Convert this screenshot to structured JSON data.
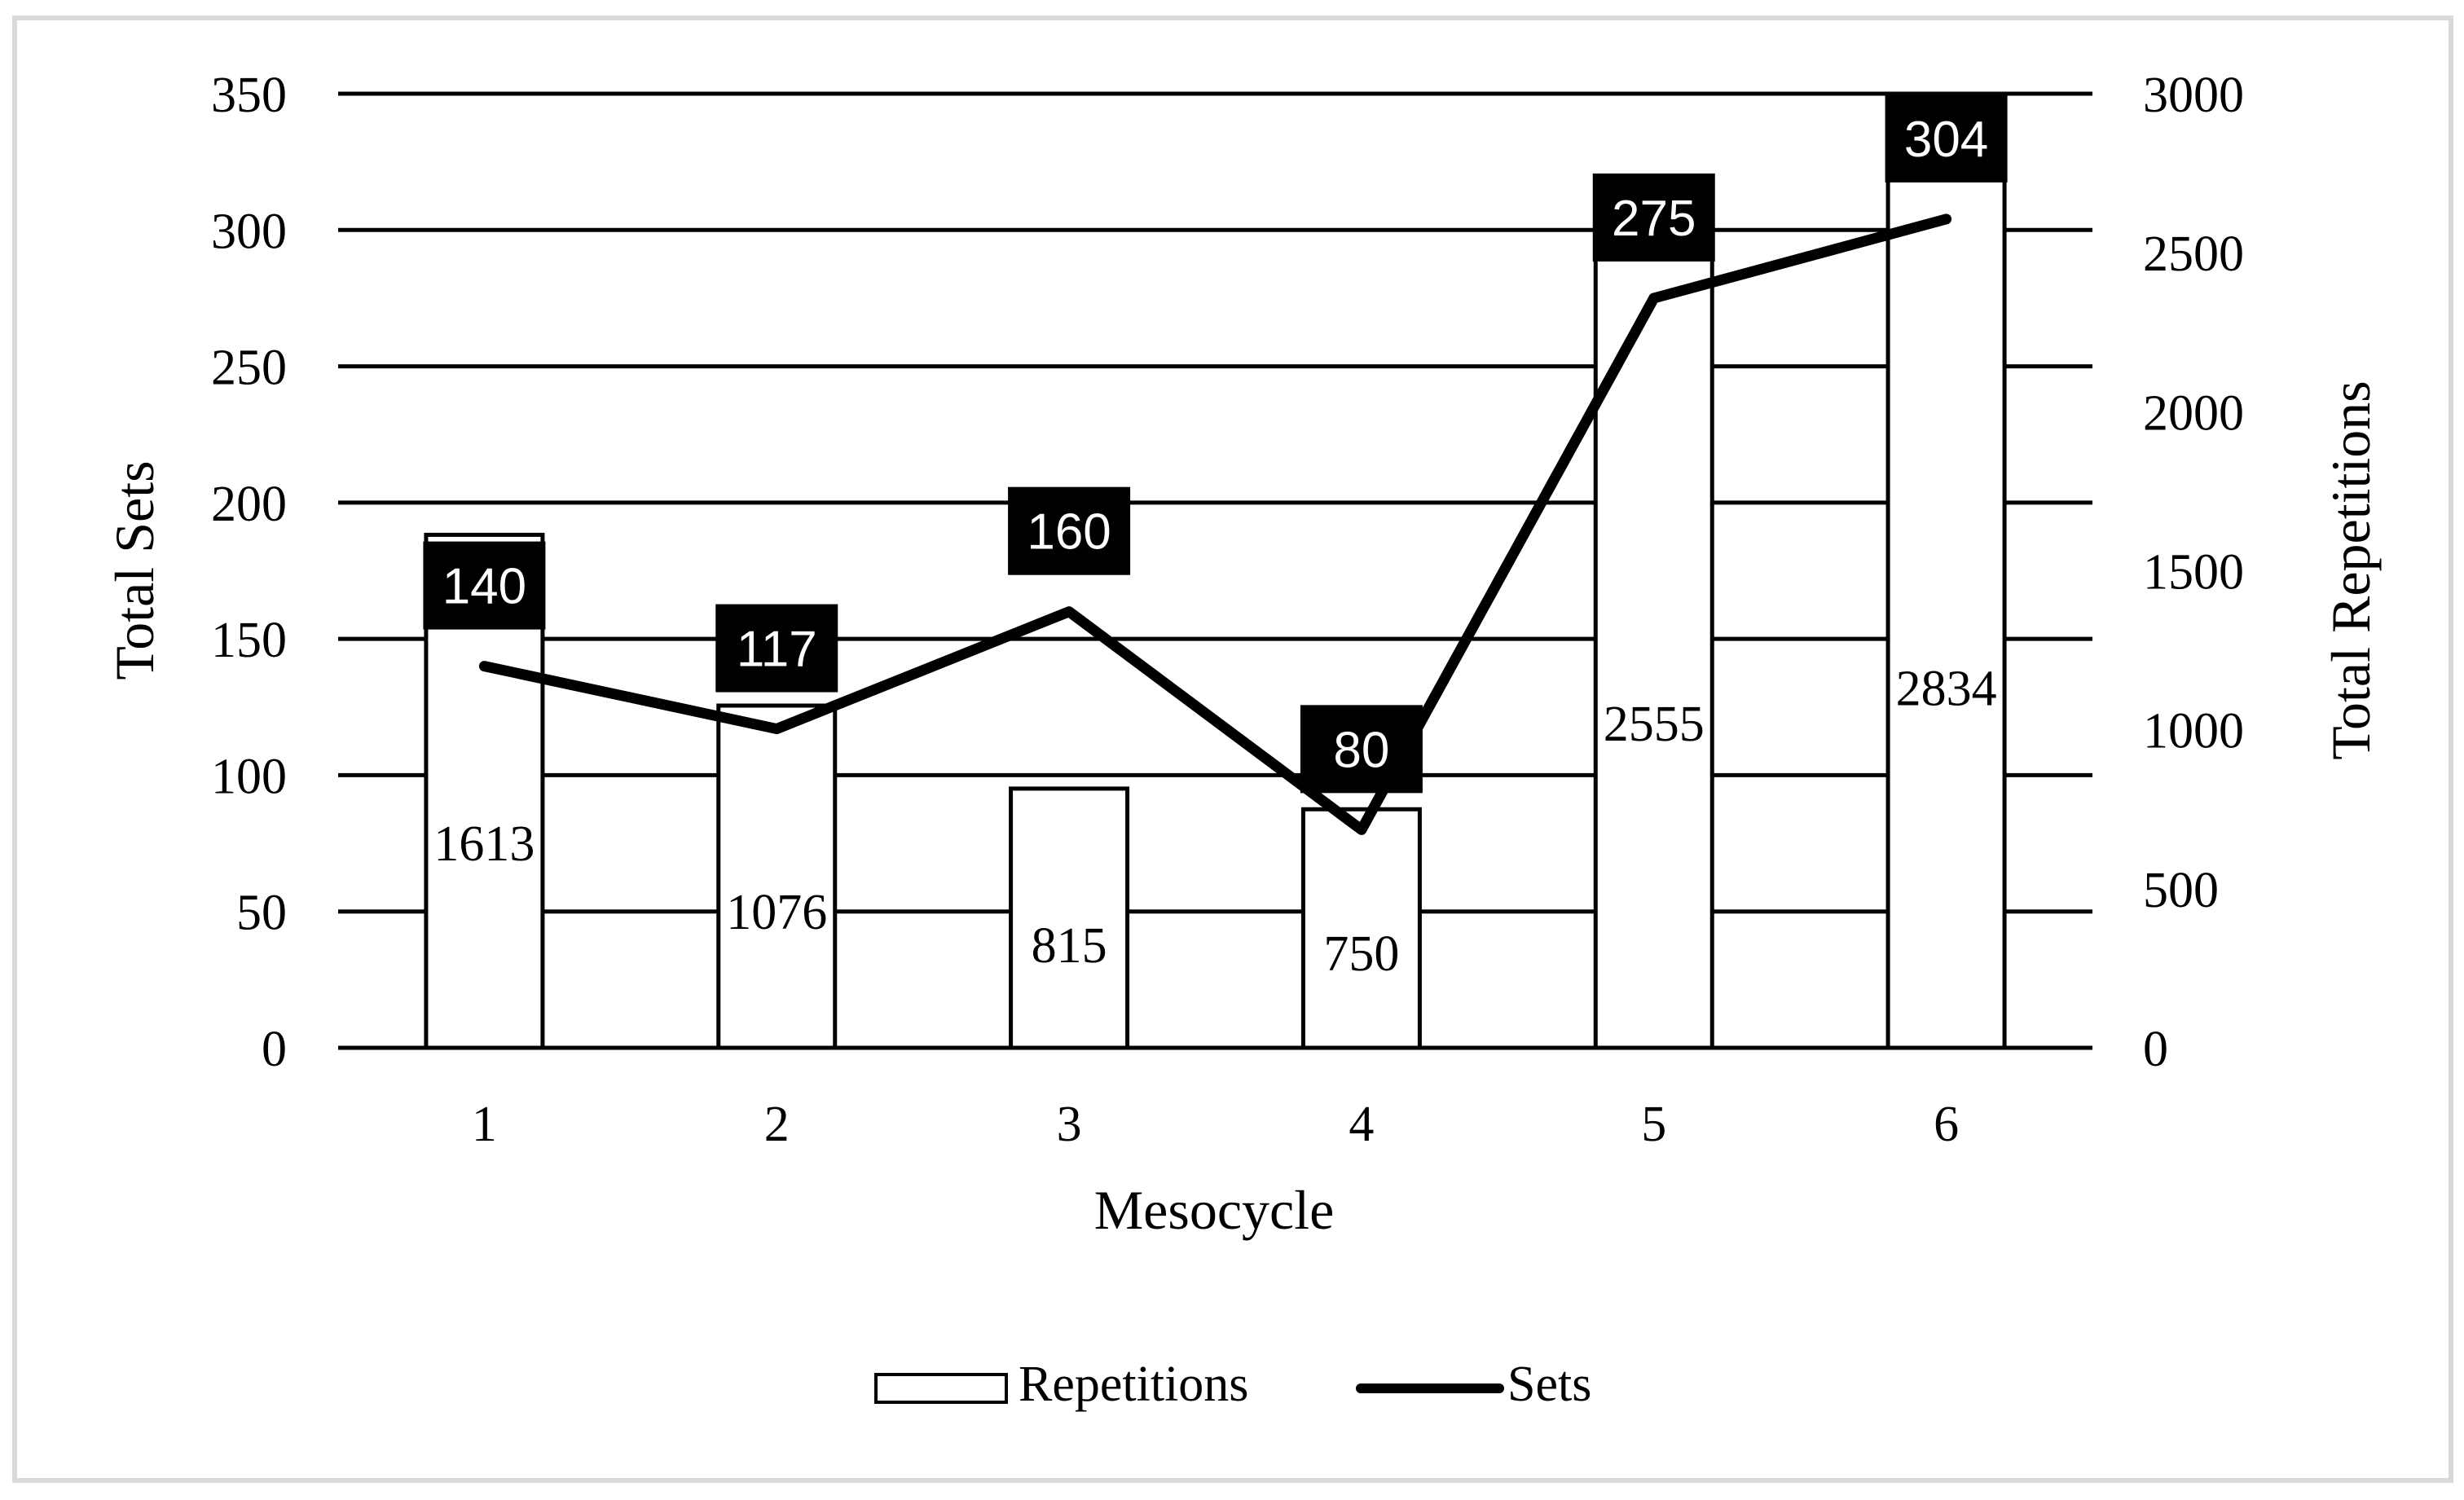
{
  "chart_data": {
    "type": "bar+line",
    "xlabel": "Mesocycle",
    "ylabel_left": "Total Sets",
    "ylabel_right": "Total Repetitions",
    "categories": [
      "1",
      "2",
      "3",
      "4",
      "5",
      "6"
    ],
    "ylim_left": [
      0,
      350
    ],
    "ylim_right": [
      0,
      3000
    ],
    "yticks_left": [
      "0",
      "50",
      "100",
      "150",
      "200",
      "250",
      "300",
      "350"
    ],
    "yticks_right": [
      "0",
      "500",
      "1000",
      "1500",
      "2000",
      "2500",
      "3000"
    ],
    "grid": true,
    "series": [
      {
        "name": "Repetitions",
        "type": "bar",
        "axis": "right",
        "values": [
          1613,
          1076,
          815,
          750,
          2555,
          2834
        ],
        "labels": [
          "1613",
          "1076",
          "815",
          "750",
          "2555",
          "2834"
        ]
      },
      {
        "name": "Sets",
        "type": "line",
        "axis": "left",
        "values": [
          140,
          117,
          160,
          80,
          275,
          304
        ],
        "labels": [
          "140",
          "117",
          "160",
          "80",
          "275",
          "304"
        ]
      }
    ],
    "legend": {
      "placement": "bottom",
      "entries": [
        "Repetitions",
        "Sets"
      ]
    },
    "colors": {
      "bar_fill": "#ffffff",
      "bar_stroke": "#000000",
      "line": "#000000",
      "label_box": "#000000",
      "label_text": "#ffffff",
      "grid": "#000000",
      "frame": "#d9d9d9"
    }
  }
}
